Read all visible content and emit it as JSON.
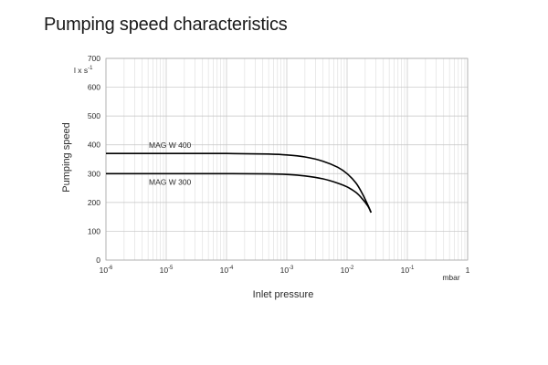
{
  "page_title": "Pumping speed characteristics",
  "chart_data": {
    "type": "line",
    "xlabel": "Inlet pressure",
    "x_unit": "mbar",
    "ylabel": "Pumping speed",
    "y_unit": "l x s-1",
    "x_scale": "log",
    "xlim": [
      1e-06,
      1
    ],
    "ylim": [
      0,
      700
    ],
    "x_ticks": [
      {
        "base": "10",
        "exp": "-6",
        "value": 1e-06
      },
      {
        "base": "10",
        "exp": "-5",
        "value": 1e-05
      },
      {
        "base": "10",
        "exp": "-4",
        "value": 0.0001
      },
      {
        "base": "10",
        "exp": "-3",
        "value": 0.001
      },
      {
        "base": "10",
        "exp": "-2",
        "value": 0.01
      },
      {
        "base": "10",
        "exp": "-1",
        "value": 0.1
      },
      {
        "base": "1",
        "exp": "",
        "value": 1
      }
    ],
    "y_ticks": [
      0,
      100,
      200,
      300,
      400,
      500,
      600,
      700
    ],
    "grid": true,
    "series": [
      {
        "name": "MAG W 400",
        "color": "#000000",
        "x": [
          1e-06,
          1e-05,
          0.0001,
          0.0005,
          0.001,
          0.002,
          0.004,
          0.007,
          0.01,
          0.014,
          0.018,
          0.022,
          0.025
        ],
        "y": [
          370,
          370,
          370,
          368,
          365,
          358,
          343,
          322,
          300,
          268,
          230,
          192,
          165
        ]
      },
      {
        "name": "MAG W 300",
        "color": "#000000",
        "x": [
          1e-06,
          1e-05,
          0.0001,
          0.0005,
          0.001,
          0.002,
          0.004,
          0.007,
          0.01,
          0.014,
          0.018,
          0.022,
          0.025
        ],
        "y": [
          300,
          300,
          300,
          299,
          297,
          292,
          282,
          267,
          254,
          235,
          212,
          188,
          165
        ]
      }
    ]
  }
}
